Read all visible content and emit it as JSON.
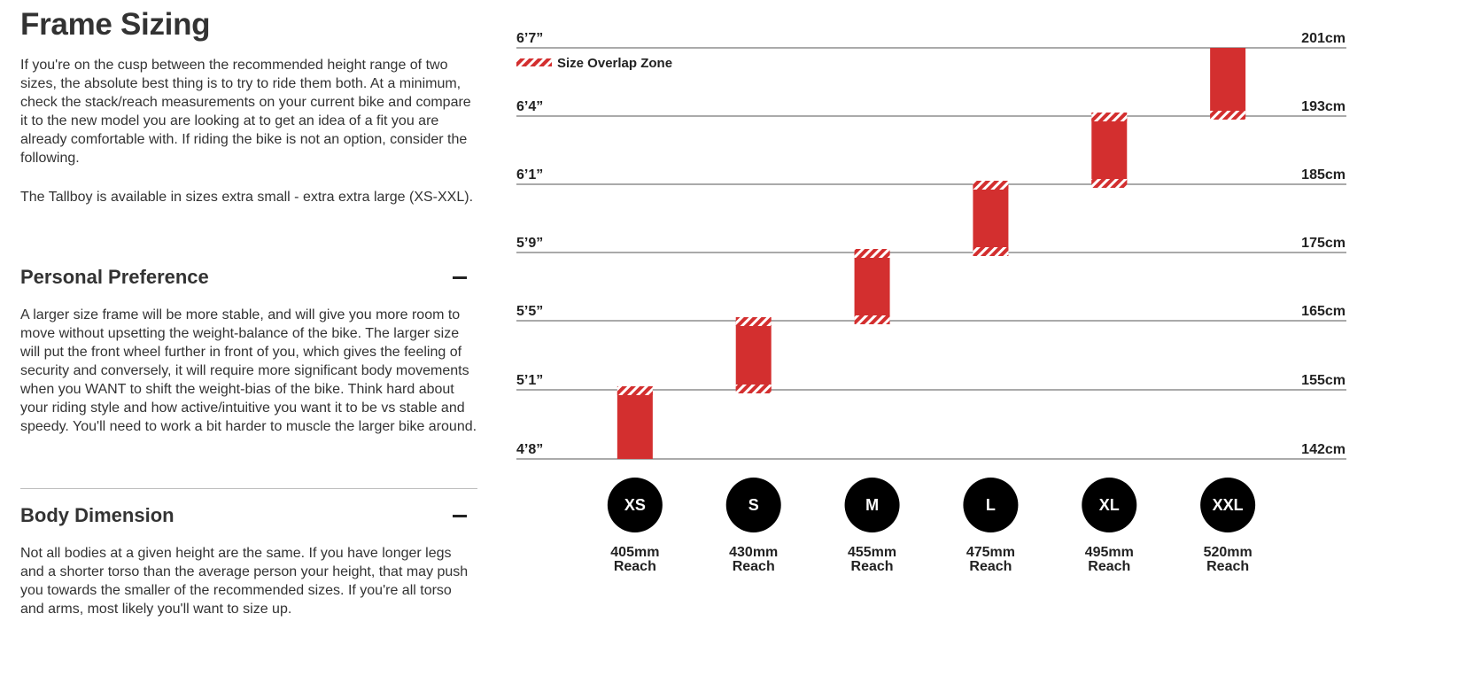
{
  "content": {
    "title": "Frame Sizing",
    "intro_1": "If you're on the cusp between the recommended height range of two sizes, the absolute best thing is to try to ride them both. At a minimum, check the stack/reach measurements on your current bike and compare it to the new model you are looking at to get an idea of a fit you are already comfortable with. If riding the bike is not an option, consider the following.",
    "intro_2": "The Tallboy is available in sizes extra small - extra extra large (XS-XXL).",
    "sections": [
      {
        "title": "Personal Preference",
        "toggle": "−",
        "body": "A larger size frame will be more stable, and will give you more room to move without upsetting the weight-balance of the bike. The larger size will put the front wheel further in front of you, which gives the feeling of security and conversely, it will require more significant body movements when you WANT to shift the weight-bias of the bike. Think hard about your riding style and how active/intuitive you want it to be vs stable and speedy. You'll need to work a bit harder to muscle the larger bike around."
      },
      {
        "title": "Body Dimension",
        "toggle": "−",
        "body": "Not all bodies at a given height are the same. If you have longer legs and a shorter torso than the average person your height, that may push you towards the smaller of the recommended sizes. If you're all torso and arms, most likely you'll want to size up."
      }
    ]
  },
  "colors": {
    "bar": "#d32f2f",
    "circle": "#000000",
    "text": "#333333",
    "gridline": "#777777"
  },
  "chart_data": {
    "type": "bar",
    "legend": "Size Overlap Zone",
    "levels": [
      {
        "ft": "4’8”",
        "cm": "142cm"
      },
      {
        "ft": "5’1”",
        "cm": "155cm"
      },
      {
        "ft": "5’5”",
        "cm": "165cm"
      },
      {
        "ft": "5’9”",
        "cm": "175cm"
      },
      {
        "ft": "6’1”",
        "cm": "185cm"
      },
      {
        "ft": "6’4”",
        "cm": "193cm"
      },
      {
        "ft": "6’7”",
        "cm": "201cm"
      }
    ],
    "categories": [
      "XS",
      "S",
      "M",
      "L",
      "XL",
      "XXL"
    ],
    "reach": [
      "405mm",
      "430mm",
      "455mm",
      "475mm",
      "495mm",
      "520mm"
    ],
    "reach_label": "Reach",
    "ranges_cm": [
      [
        142,
        155
      ],
      [
        155,
        165
      ],
      [
        165,
        175
      ],
      [
        175,
        185
      ],
      [
        185,
        193
      ],
      [
        193,
        201
      ]
    ],
    "overlap_bottom": [
      false,
      true,
      true,
      true,
      true,
      true
    ],
    "overlap_top": [
      true,
      true,
      true,
      true,
      true,
      false
    ]
  }
}
